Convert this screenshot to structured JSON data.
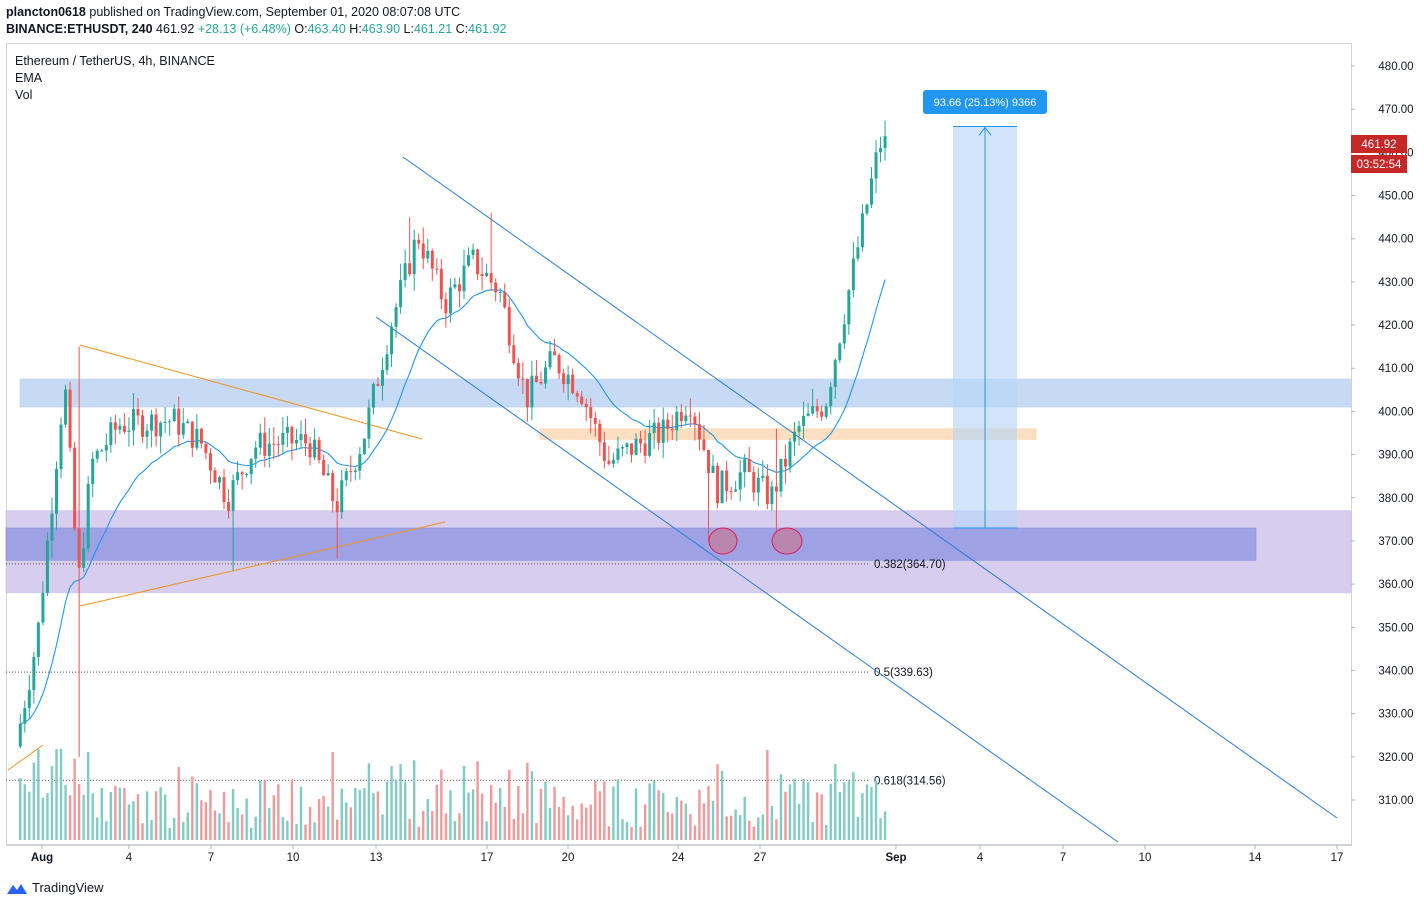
{
  "header": {
    "publisher": "plancton0618",
    "published_text": "published on TradingView.com, September 01, 2020 08:07:08 UTC",
    "symbol": "BINANCE:ETHUSDT, 240",
    "last": "461.92",
    "change": "+28.13 (+6.48%)",
    "o_label": "O:",
    "o": "463.40",
    "h_label": "H:",
    "h": "463.90",
    "l_label": "L:",
    "l": "461.21",
    "c_label": "C:",
    "c": "461.92"
  },
  "legend": {
    "title": "Ethereum / TetherUS, 4h, BINANCE",
    "ema": "EMA",
    "vol": "Vol"
  },
  "price_tags": {
    "last_price": "461.92",
    "countdown": "03:52:54"
  },
  "measure_label": "93.66 (25.13%) 9366",
  "fib_labels": [
    "0.382(364.70)",
    "0.5(339.63)",
    "0.618(314.56)"
  ],
  "brand": "TradingView",
  "colors": {
    "up": "#26a69a",
    "down": "#ef5350",
    "ema": "#2196f3",
    "channel": "#2a7bd6",
    "triangle": "#f5921e",
    "blue_zone": "#bcd4f5",
    "purple_zone": "#c9bcea",
    "orange_zone": "#fbd9b5",
    "price_tag": "#c62828",
    "measure": "#2196f3"
  },
  "chart_data": {
    "type": "candlestick",
    "x_ticks": [
      "Aug",
      "4",
      "7",
      "10",
      "13",
      "17",
      "20",
      "24",
      "27",
      "Sep",
      "4",
      "7",
      "10",
      "14",
      "17"
    ],
    "y_ticks": [
      "480.00",
      "470.00",
      "460.00",
      "450.00",
      "440.00",
      "430.00",
      "420.00",
      "410.00",
      "400.00",
      "390.00",
      "380.00",
      "370.00",
      "360.00",
      "350.00",
      "340.00",
      "330.00",
      "320.00",
      "310.00"
    ],
    "ylim": [
      300,
      484
    ],
    "zones": [
      {
        "name": "resistance-zone",
        "low": 401,
        "high": 407.5
      },
      {
        "name": "support-zone",
        "low": 358,
        "high": 377
      },
      {
        "name": "inner-support-zone",
        "low": 365.5,
        "high": 373
      },
      {
        "name": "pivot-zone",
        "low": 393.5,
        "high": 396
      }
    ],
    "fib_levels": [
      364.7,
      339.63,
      314.56
    ],
    "measure": {
      "from": 373,
      "to": 466,
      "text": "93.66 (25.13%) 9366"
    },
    "anchor_points": [
      {
        "date": "Jul 31",
        "price": 316
      },
      {
        "date": "Aug 1",
        "price": 348
      },
      {
        "date": "Aug 2",
        "price": 407
      },
      {
        "date": "Aug 2",
        "price": 360
      },
      {
        "date": "Aug 3",
        "price": 388
      },
      {
        "date": "Aug 4",
        "price": 397
      },
      {
        "date": "Aug 6",
        "price": 398
      },
      {
        "date": "Aug 7",
        "price": 393
      },
      {
        "date": "Aug 8",
        "price": 380
      },
      {
        "date": "Aug 9",
        "price": 392
      },
      {
        "date": "Aug 10",
        "price": 393
      },
      {
        "date": "Aug 11",
        "price": 393
      },
      {
        "date": "Aug 12",
        "price": 378
      },
      {
        "date": "Aug 13",
        "price": 394
      },
      {
        "date": "Aug 14",
        "price": 420
      },
      {
        "date": "Aug 15",
        "price": 441
      },
      {
        "date": "Aug 16",
        "price": 425
      },
      {
        "date": "Aug 17",
        "price": 435
      },
      {
        "date": "Aug 18",
        "price": 428
      },
      {
        "date": "Aug 19",
        "price": 403
      },
      {
        "date": "Aug 20",
        "price": 412
      },
      {
        "date": "Aug 21",
        "price": 405
      },
      {
        "date": "Aug 22",
        "price": 388
      },
      {
        "date": "Aug 23",
        "price": 392
      },
      {
        "date": "Aug 24",
        "price": 395
      },
      {
        "date": "Aug 25",
        "price": 403
      },
      {
        "date": "Aug 26",
        "price": 382
      },
      {
        "date": "Aug 27",
        "price": 386
      },
      {
        "date": "Aug 28",
        "price": 380
      },
      {
        "date": "Aug 29",
        "price": 396
      },
      {
        "date": "Aug 30",
        "price": 402
      },
      {
        "date": "Aug 31",
        "price": 432
      },
      {
        "date": "Sep 1",
        "price": 462
      }
    ]
  }
}
